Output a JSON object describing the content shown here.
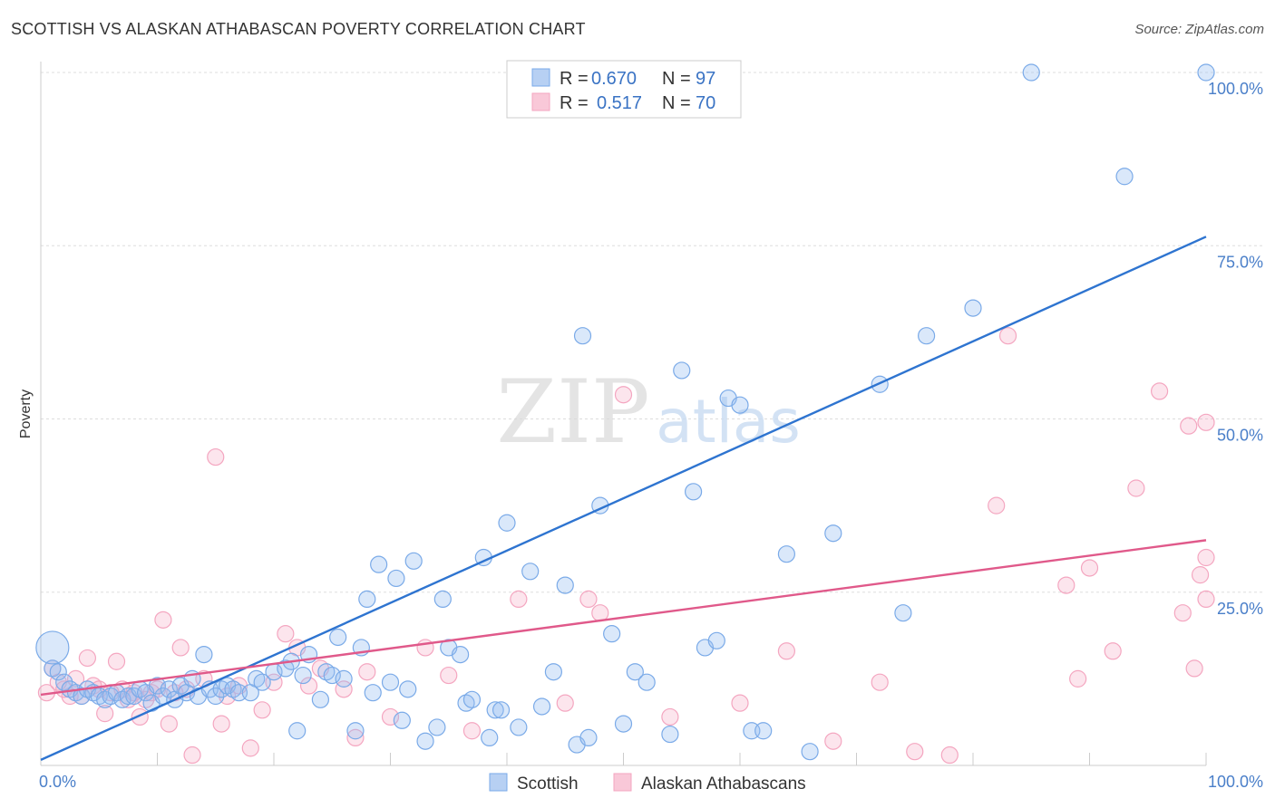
{
  "title": "SCOTTISH VS ALASKAN ATHABASCAN POVERTY CORRELATION CHART",
  "source": "Source: ZipAtlas.com",
  "watermark": {
    "zip": "ZIP",
    "atlas": "atlas"
  },
  "chart_data": {
    "type": "scatter",
    "title": "SCOTTISH VS ALASKAN ATHABASCAN POVERTY CORRELATION CHART",
    "xlabel": "",
    "ylabel": "Poverty",
    "xlim": [
      0,
      100
    ],
    "ylim": [
      0,
      100
    ],
    "x_tick_labels": [
      "0.0%",
      "100.0%"
    ],
    "y_tick_labels": [
      "25.0%",
      "50.0%",
      "75.0%",
      "100.0%"
    ],
    "y_ticks": [
      25,
      50,
      75,
      100
    ],
    "grid": true,
    "legend_position": "top-center",
    "series": [
      {
        "name": "Scottish",
        "color": "#7aaae8",
        "line_color": "#2e74d0",
        "r_label": "R =",
        "r_value": "0.670",
        "n_label": "N =",
        "n_value": "97",
        "trend": {
          "x": [
            0,
            100
          ],
          "y": [
            0.8,
            76.3
          ]
        },
        "points": [
          {
            "x": 1,
            "y": 14
          },
          {
            "x": 1,
            "y": 17,
            "s": 2
          },
          {
            "x": 1.5,
            "y": 13.5
          },
          {
            "x": 2,
            "y": 12
          },
          {
            "x": 2.5,
            "y": 11
          },
          {
            "x": 3,
            "y": 10.5
          },
          {
            "x": 3.5,
            "y": 10
          },
          {
            "x": 4,
            "y": 11
          },
          {
            "x": 4.5,
            "y": 10.5
          },
          {
            "x": 5,
            "y": 10
          },
          {
            "x": 5.5,
            "y": 9.5
          },
          {
            "x": 6,
            "y": 10
          },
          {
            "x": 6.5,
            "y": 10.5
          },
          {
            "x": 7,
            "y": 9.5
          },
          {
            "x": 7.5,
            "y": 10
          },
          {
            "x": 8,
            "y": 10
          },
          {
            "x": 8.5,
            "y": 11
          },
          {
            "x": 9,
            "y": 10.5
          },
          {
            "x": 9.5,
            "y": 9
          },
          {
            "x": 10,
            "y": 11.5
          },
          {
            "x": 10.5,
            "y": 10
          },
          {
            "x": 11,
            "y": 11
          },
          {
            "x": 11.5,
            "y": 9.5
          },
          {
            "x": 12,
            "y": 11.5
          },
          {
            "x": 12.5,
            "y": 10.5
          },
          {
            "x": 13,
            "y": 12.5
          },
          {
            "x": 13.5,
            "y": 10
          },
          {
            "x": 14,
            "y": 16
          },
          {
            "x": 14.5,
            "y": 11
          },
          {
            "x": 15,
            "y": 10
          },
          {
            "x": 15.5,
            "y": 11
          },
          {
            "x": 16,
            "y": 11.5
          },
          {
            "x": 16.5,
            "y": 11
          },
          {
            "x": 17,
            "y": 10.5
          },
          {
            "x": 18,
            "y": 10.5
          },
          {
            "x": 18.5,
            "y": 12.5
          },
          {
            "x": 19,
            "y": 12
          },
          {
            "x": 20,
            "y": 13.5
          },
          {
            "x": 21,
            "y": 14
          },
          {
            "x": 21.5,
            "y": 15
          },
          {
            "x": 22,
            "y": 5
          },
          {
            "x": 22.5,
            "y": 13
          },
          {
            "x": 23,
            "y": 16
          },
          {
            "x": 24,
            "y": 9.5
          },
          {
            "x": 24.5,
            "y": 13.5
          },
          {
            "x": 25,
            "y": 13
          },
          {
            "x": 25.5,
            "y": 18.5
          },
          {
            "x": 26,
            "y": 12.5
          },
          {
            "x": 27,
            "y": 5
          },
          {
            "x": 27.5,
            "y": 17
          },
          {
            "x": 28,
            "y": 24
          },
          {
            "x": 28.5,
            "y": 10.5
          },
          {
            "x": 29,
            "y": 29
          },
          {
            "x": 30,
            "y": 12
          },
          {
            "x": 30.5,
            "y": 27
          },
          {
            "x": 31,
            "y": 6.5
          },
          {
            "x": 31.5,
            "y": 11
          },
          {
            "x": 32,
            "y": 29.5
          },
          {
            "x": 33,
            "y": 3.5
          },
          {
            "x": 34,
            "y": 5.5
          },
          {
            "x": 34.5,
            "y": 24
          },
          {
            "x": 35,
            "y": 17
          },
          {
            "x": 36,
            "y": 16
          },
          {
            "x": 36.5,
            "y": 9
          },
          {
            "x": 37,
            "y": 9.5
          },
          {
            "x": 38,
            "y": 30
          },
          {
            "x": 38.5,
            "y": 4
          },
          {
            "x": 39,
            "y": 8
          },
          {
            "x": 39.5,
            "y": 8
          },
          {
            "x": 40,
            "y": 35
          },
          {
            "x": 41,
            "y": 5.5
          },
          {
            "x": 42,
            "y": 28
          },
          {
            "x": 43,
            "y": 8.5
          },
          {
            "x": 44,
            "y": 13.5
          },
          {
            "x": 45,
            "y": 26
          },
          {
            "x": 46,
            "y": 3
          },
          {
            "x": 46.5,
            "y": 62
          },
          {
            "x": 47,
            "y": 4
          },
          {
            "x": 48,
            "y": 37.5
          },
          {
            "x": 49,
            "y": 19
          },
          {
            "x": 50,
            "y": 6
          },
          {
            "x": 51,
            "y": 13.5
          },
          {
            "x": 52,
            "y": 12
          },
          {
            "x": 54,
            "y": 4.5
          },
          {
            "x": 55,
            "y": 57
          },
          {
            "x": 56,
            "y": 39.5
          },
          {
            "x": 57,
            "y": 17
          },
          {
            "x": 58,
            "y": 18
          },
          {
            "x": 59,
            "y": 53
          },
          {
            "x": 60,
            "y": 52
          },
          {
            "x": 61,
            "y": 5
          },
          {
            "x": 62,
            "y": 5
          },
          {
            "x": 64,
            "y": 30.5
          },
          {
            "x": 66,
            "y": 2
          },
          {
            "x": 68,
            "y": 33.5
          },
          {
            "x": 72,
            "y": 55
          },
          {
            "x": 74,
            "y": 22
          },
          {
            "x": 76,
            "y": 62
          },
          {
            "x": 80,
            "y": 66
          },
          {
            "x": 85,
            "y": 100
          },
          {
            "x": 93,
            "y": 85
          },
          {
            "x": 100,
            "y": 100
          }
        ]
      },
      {
        "name": "Alaskan Athabascans",
        "color": "#f4a6c0",
        "line_color": "#e0598a",
        "r_label": "R =",
        "r_value": "0.517",
        "n_label": "N =",
        "n_value": "70",
        "trend": {
          "x": [
            0,
            100
          ],
          "y": [
            10.2,
            32.5
          ]
        },
        "points": [
          {
            "x": 0.5,
            "y": 10.5
          },
          {
            "x": 1,
            "y": 14
          },
          {
            "x": 1.5,
            "y": 12
          },
          {
            "x": 2,
            "y": 11
          },
          {
            "x": 2.5,
            "y": 10
          },
          {
            "x": 3,
            "y": 12.5
          },
          {
            "x": 3.5,
            "y": 10
          },
          {
            "x": 4,
            "y": 15.5
          },
          {
            "x": 4.5,
            "y": 11.5
          },
          {
            "x": 5,
            "y": 11
          },
          {
            "x": 5.5,
            "y": 7.5
          },
          {
            "x": 6,
            "y": 10.5
          },
          {
            "x": 6.5,
            "y": 15
          },
          {
            "x": 7,
            "y": 11
          },
          {
            "x": 7.5,
            "y": 9.5
          },
          {
            "x": 8,
            "y": 10.5
          },
          {
            "x": 8.5,
            "y": 7
          },
          {
            "x": 9,
            "y": 9.5
          },
          {
            "x": 9.5,
            "y": 10.5
          },
          {
            "x": 10,
            "y": 11
          },
          {
            "x": 10.5,
            "y": 21
          },
          {
            "x": 11,
            "y": 6
          },
          {
            "x": 11.5,
            "y": 10.5
          },
          {
            "x": 12,
            "y": 17
          },
          {
            "x": 12.5,
            "y": 11
          },
          {
            "x": 13,
            "y": 1.5
          },
          {
            "x": 14,
            "y": 12.5
          },
          {
            "x": 15,
            "y": 44.5
          },
          {
            "x": 15.5,
            "y": 6
          },
          {
            "x": 16,
            "y": 10
          },
          {
            "x": 17,
            "y": 11.5
          },
          {
            "x": 18,
            "y": 2.5
          },
          {
            "x": 19,
            "y": 8
          },
          {
            "x": 20,
            "y": 12
          },
          {
            "x": 21,
            "y": 19
          },
          {
            "x": 22,
            "y": 17
          },
          {
            "x": 23,
            "y": 11.5
          },
          {
            "x": 24,
            "y": 14
          },
          {
            "x": 26,
            "y": 11
          },
          {
            "x": 27,
            "y": 4
          },
          {
            "x": 28,
            "y": 13.5
          },
          {
            "x": 30,
            "y": 7
          },
          {
            "x": 33,
            "y": 17
          },
          {
            "x": 35,
            "y": 13
          },
          {
            "x": 37,
            "y": 5
          },
          {
            "x": 41,
            "y": 24
          },
          {
            "x": 45,
            "y": 9
          },
          {
            "x": 47,
            "y": 24
          },
          {
            "x": 48,
            "y": 22
          },
          {
            "x": 50,
            "y": 53.5
          },
          {
            "x": 54,
            "y": 7
          },
          {
            "x": 60,
            "y": 9
          },
          {
            "x": 64,
            "y": 16.5
          },
          {
            "x": 68,
            "y": 3.5
          },
          {
            "x": 72,
            "y": 12
          },
          {
            "x": 75,
            "y": 2
          },
          {
            "x": 78,
            "y": 1.5
          },
          {
            "x": 82,
            "y": 37.5
          },
          {
            "x": 83,
            "y": 62
          },
          {
            "x": 88,
            "y": 26
          },
          {
            "x": 89,
            "y": 12.5
          },
          {
            "x": 90,
            "y": 28.5
          },
          {
            "x": 92,
            "y": 16.5
          },
          {
            "x": 94,
            "y": 40
          },
          {
            "x": 96,
            "y": 54
          },
          {
            "x": 98,
            "y": 22
          },
          {
            "x": 99,
            "y": 14
          },
          {
            "x": 100,
            "y": 30
          }
        ]
      }
    ]
  },
  "extra_pink_points": [
    {
      "x": 98.5,
      "y": 49
    },
    {
      "x": 99.5,
      "y": 27.5
    },
    {
      "x": 100,
      "y": 24
    },
    {
      "x": 100,
      "y": 49.5
    }
  ]
}
